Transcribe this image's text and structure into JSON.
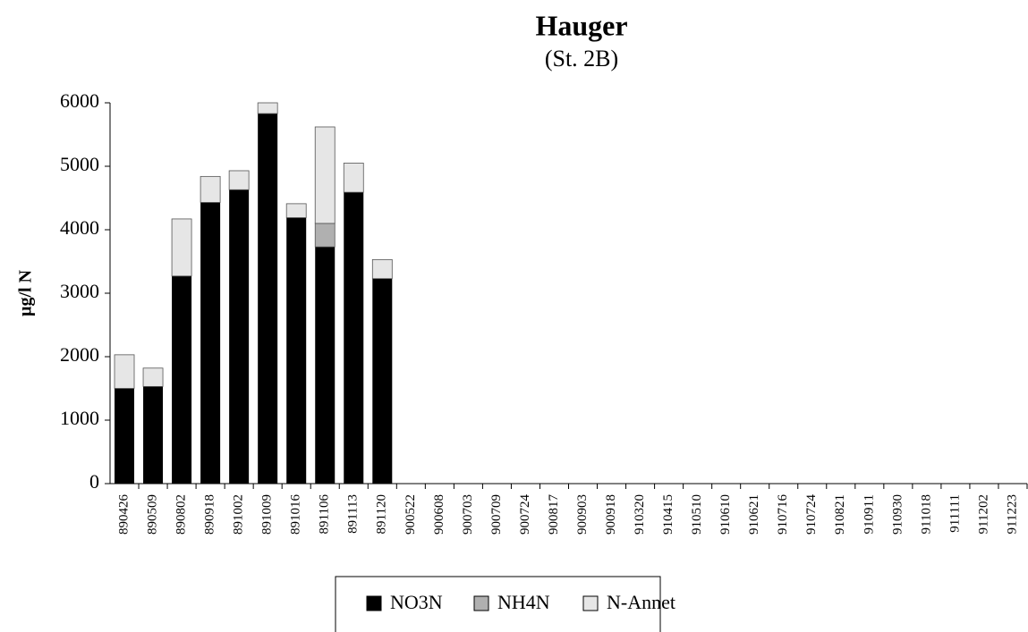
{
  "chart_data": {
    "type": "stacked_bar",
    "title": "Hauger",
    "subtitle": "(St. 2B)",
    "y_label": "µg/l N",
    "categories": [
      "890426",
      "890509",
      "890802",
      "890918",
      "891002",
      "891009",
      "891016",
      "891106",
      "891113",
      "891120",
      "900522",
      "900608",
      "900703",
      "900709",
      "900724",
      "900817",
      "900903",
      "900918",
      "910320",
      "910415",
      "910510",
      "910610",
      "910621",
      "910716",
      "910724",
      "910821",
      "910911",
      "910930",
      "911018",
      "911111",
      "911202",
      "911223"
    ],
    "series": [
      {
        "name": "NO3N",
        "color": "#000000",
        "values": [
          1500,
          1530,
          3270,
          4430,
          4630,
          5830,
          4190,
          3730,
          4590,
          3230,
          null,
          null,
          null,
          null,
          null,
          null,
          null,
          null,
          null,
          null,
          null,
          null,
          null,
          null,
          null,
          null,
          null,
          null,
          null,
          null,
          null,
          null
        ]
      },
      {
        "name": "NH4N",
        "color": "#b0b0b0",
        "values": [
          0,
          0,
          0,
          0,
          0,
          0,
          0,
          370,
          0,
          0,
          null,
          null,
          null,
          null,
          null,
          null,
          null,
          null,
          null,
          null,
          null,
          null,
          null,
          null,
          null,
          null,
          null,
          null,
          null,
          null,
          null,
          null
        ]
      },
      {
        "name": "N-Annet",
        "color": "#e6e6e6",
        "values": [
          530,
          290,
          900,
          410,
          300,
          170,
          220,
          1520,
          460,
          300,
          null,
          null,
          null,
          null,
          null,
          null,
          null,
          null,
          null,
          null,
          null,
          null,
          null,
          null,
          null,
          null,
          null,
          null,
          null,
          null,
          null,
          null
        ]
      }
    ],
    "ylim": [
      0,
      6000
    ],
    "yticks": [
      0,
      1000,
      2000,
      3000,
      4000,
      5000,
      6000
    ],
    "grid": false,
    "legend": "bottom"
  }
}
